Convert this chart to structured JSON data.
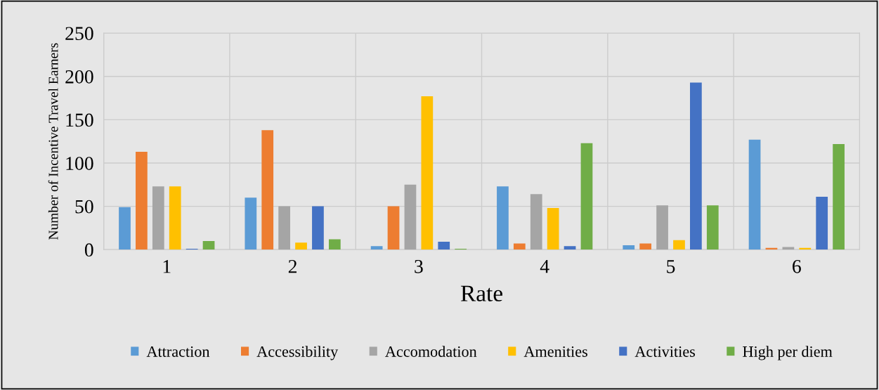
{
  "chart_data": {
    "type": "bar",
    "xlabel": "Rate",
    "ylabel": "Number of Incentive Travel Earners",
    "categories": [
      "1",
      "2",
      "3",
      "4",
      "5",
      "6"
    ],
    "series": [
      {
        "name": "Attraction",
        "color": "#5b9bd5",
        "values": [
          49,
          60,
          4,
          73,
          5,
          127
        ]
      },
      {
        "name": "Accessibility",
        "color": "#ed7d31",
        "values": [
          113,
          138,
          50,
          7,
          7,
          2
        ]
      },
      {
        "name": "Accomodation",
        "color": "#a5a5a5",
        "values": [
          73,
          50,
          75,
          64,
          51,
          3
        ]
      },
      {
        "name": "Amenities",
        "color": "#ffc000",
        "values": [
          73,
          8,
          177,
          48,
          11,
          2
        ]
      },
      {
        "name": "Activities",
        "color": "#4472c4",
        "values": [
          1,
          50,
          9,
          4,
          193,
          61
        ]
      },
      {
        "name": "High per diem",
        "color": "#70ad47",
        "values": [
          10,
          12,
          1,
          123,
          51,
          122
        ]
      }
    ],
    "ylim": [
      0,
      250
    ],
    "yticks": [
      0,
      50,
      100,
      150,
      200,
      250
    ],
    "grid": true,
    "legend": "bottom"
  }
}
